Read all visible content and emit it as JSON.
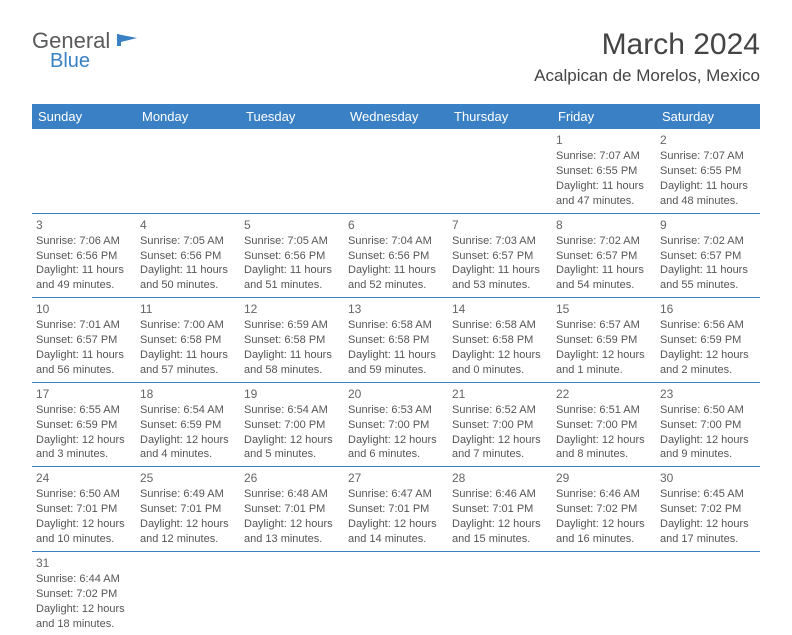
{
  "logo": {
    "general": "General",
    "blue": "Blue"
  },
  "title": "March 2024",
  "location": "Acalpican de Morelos, Mexico",
  "header_bg": "#3a80c4",
  "header_fg": "#ffffff",
  "border_color": "#3a80c4",
  "text_color": "#555555",
  "day_headers": [
    "Sunday",
    "Monday",
    "Tuesday",
    "Wednesday",
    "Thursday",
    "Friday",
    "Saturday"
  ],
  "weeks": [
    [
      null,
      null,
      null,
      null,
      null,
      {
        "n": "1",
        "sr": "Sunrise: 7:07 AM",
        "ss": "Sunset: 6:55 PM",
        "d1": "Daylight: 11 hours",
        "d2": "and 47 minutes."
      },
      {
        "n": "2",
        "sr": "Sunrise: 7:07 AM",
        "ss": "Sunset: 6:55 PM",
        "d1": "Daylight: 11 hours",
        "d2": "and 48 minutes."
      }
    ],
    [
      {
        "n": "3",
        "sr": "Sunrise: 7:06 AM",
        "ss": "Sunset: 6:56 PM",
        "d1": "Daylight: 11 hours",
        "d2": "and 49 minutes."
      },
      {
        "n": "4",
        "sr": "Sunrise: 7:05 AM",
        "ss": "Sunset: 6:56 PM",
        "d1": "Daylight: 11 hours",
        "d2": "and 50 minutes."
      },
      {
        "n": "5",
        "sr": "Sunrise: 7:05 AM",
        "ss": "Sunset: 6:56 PM",
        "d1": "Daylight: 11 hours",
        "d2": "and 51 minutes."
      },
      {
        "n": "6",
        "sr": "Sunrise: 7:04 AM",
        "ss": "Sunset: 6:56 PM",
        "d1": "Daylight: 11 hours",
        "d2": "and 52 minutes."
      },
      {
        "n": "7",
        "sr": "Sunrise: 7:03 AM",
        "ss": "Sunset: 6:57 PM",
        "d1": "Daylight: 11 hours",
        "d2": "and 53 minutes."
      },
      {
        "n": "8",
        "sr": "Sunrise: 7:02 AM",
        "ss": "Sunset: 6:57 PM",
        "d1": "Daylight: 11 hours",
        "d2": "and 54 minutes."
      },
      {
        "n": "9",
        "sr": "Sunrise: 7:02 AM",
        "ss": "Sunset: 6:57 PM",
        "d1": "Daylight: 11 hours",
        "d2": "and 55 minutes."
      }
    ],
    [
      {
        "n": "10",
        "sr": "Sunrise: 7:01 AM",
        "ss": "Sunset: 6:57 PM",
        "d1": "Daylight: 11 hours",
        "d2": "and 56 minutes."
      },
      {
        "n": "11",
        "sr": "Sunrise: 7:00 AM",
        "ss": "Sunset: 6:58 PM",
        "d1": "Daylight: 11 hours",
        "d2": "and 57 minutes."
      },
      {
        "n": "12",
        "sr": "Sunrise: 6:59 AM",
        "ss": "Sunset: 6:58 PM",
        "d1": "Daylight: 11 hours",
        "d2": "and 58 minutes."
      },
      {
        "n": "13",
        "sr": "Sunrise: 6:58 AM",
        "ss": "Sunset: 6:58 PM",
        "d1": "Daylight: 11 hours",
        "d2": "and 59 minutes."
      },
      {
        "n": "14",
        "sr": "Sunrise: 6:58 AM",
        "ss": "Sunset: 6:58 PM",
        "d1": "Daylight: 12 hours",
        "d2": "and 0 minutes."
      },
      {
        "n": "15",
        "sr": "Sunrise: 6:57 AM",
        "ss": "Sunset: 6:59 PM",
        "d1": "Daylight: 12 hours",
        "d2": "and 1 minute."
      },
      {
        "n": "16",
        "sr": "Sunrise: 6:56 AM",
        "ss": "Sunset: 6:59 PM",
        "d1": "Daylight: 12 hours",
        "d2": "and 2 minutes."
      }
    ],
    [
      {
        "n": "17",
        "sr": "Sunrise: 6:55 AM",
        "ss": "Sunset: 6:59 PM",
        "d1": "Daylight: 12 hours",
        "d2": "and 3 minutes."
      },
      {
        "n": "18",
        "sr": "Sunrise: 6:54 AM",
        "ss": "Sunset: 6:59 PM",
        "d1": "Daylight: 12 hours",
        "d2": "and 4 minutes."
      },
      {
        "n": "19",
        "sr": "Sunrise: 6:54 AM",
        "ss": "Sunset: 7:00 PM",
        "d1": "Daylight: 12 hours",
        "d2": "and 5 minutes."
      },
      {
        "n": "20",
        "sr": "Sunrise: 6:53 AM",
        "ss": "Sunset: 7:00 PM",
        "d1": "Daylight: 12 hours",
        "d2": "and 6 minutes."
      },
      {
        "n": "21",
        "sr": "Sunrise: 6:52 AM",
        "ss": "Sunset: 7:00 PM",
        "d1": "Daylight: 12 hours",
        "d2": "and 7 minutes."
      },
      {
        "n": "22",
        "sr": "Sunrise: 6:51 AM",
        "ss": "Sunset: 7:00 PM",
        "d1": "Daylight: 12 hours",
        "d2": "and 8 minutes."
      },
      {
        "n": "23",
        "sr": "Sunrise: 6:50 AM",
        "ss": "Sunset: 7:00 PM",
        "d1": "Daylight: 12 hours",
        "d2": "and 9 minutes."
      }
    ],
    [
      {
        "n": "24",
        "sr": "Sunrise: 6:50 AM",
        "ss": "Sunset: 7:01 PM",
        "d1": "Daylight: 12 hours",
        "d2": "and 10 minutes."
      },
      {
        "n": "25",
        "sr": "Sunrise: 6:49 AM",
        "ss": "Sunset: 7:01 PM",
        "d1": "Daylight: 12 hours",
        "d2": "and 12 minutes."
      },
      {
        "n": "26",
        "sr": "Sunrise: 6:48 AM",
        "ss": "Sunset: 7:01 PM",
        "d1": "Daylight: 12 hours",
        "d2": "and 13 minutes."
      },
      {
        "n": "27",
        "sr": "Sunrise: 6:47 AM",
        "ss": "Sunset: 7:01 PM",
        "d1": "Daylight: 12 hours",
        "d2": "and 14 minutes."
      },
      {
        "n": "28",
        "sr": "Sunrise: 6:46 AM",
        "ss": "Sunset: 7:01 PM",
        "d1": "Daylight: 12 hours",
        "d2": "and 15 minutes."
      },
      {
        "n": "29",
        "sr": "Sunrise: 6:46 AM",
        "ss": "Sunset: 7:02 PM",
        "d1": "Daylight: 12 hours",
        "d2": "and 16 minutes."
      },
      {
        "n": "30",
        "sr": "Sunrise: 6:45 AM",
        "ss": "Sunset: 7:02 PM",
        "d1": "Daylight: 12 hours",
        "d2": "and 17 minutes."
      }
    ],
    [
      {
        "n": "31",
        "sr": "Sunrise: 6:44 AM",
        "ss": "Sunset: 7:02 PM",
        "d1": "Daylight: 12 hours",
        "d2": "and 18 minutes."
      },
      null,
      null,
      null,
      null,
      null,
      null
    ]
  ]
}
